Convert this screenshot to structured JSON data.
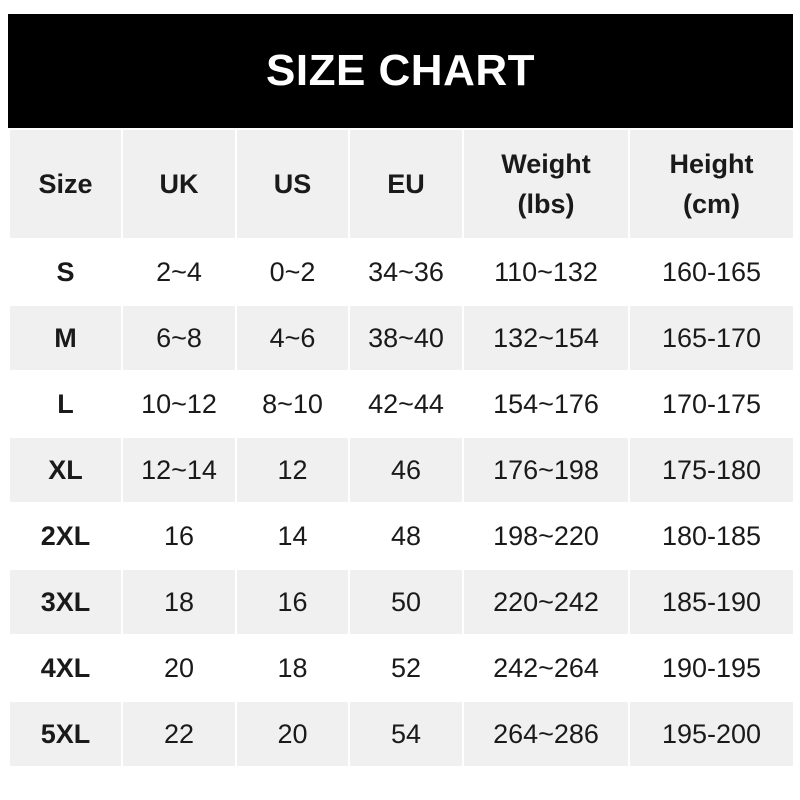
{
  "title": "SIZE CHART",
  "headers": [
    {
      "line1": "Size",
      "line2": ""
    },
    {
      "line1": "UK",
      "line2": ""
    },
    {
      "line1": "US",
      "line2": ""
    },
    {
      "line1": "EU",
      "line2": ""
    },
    {
      "line1": "Weight",
      "line2": "(lbs)"
    },
    {
      "line1": "Height",
      "line2": "(cm)"
    }
  ],
  "rows": [
    [
      "S",
      "2~4",
      "0~2",
      "34~36",
      "110~132",
      "160-165"
    ],
    [
      "M",
      "6~8",
      "4~6",
      "38~40",
      "132~154",
      "165-170"
    ],
    [
      "L",
      "10~12",
      "8~10",
      "42~44",
      "154~176",
      "170-175"
    ],
    [
      "XL",
      "12~14",
      "12",
      "46",
      "176~198",
      "175-180"
    ],
    [
      "2XL",
      "16",
      "14",
      "48",
      "198~220",
      "180-185"
    ],
    [
      "3XL",
      "18",
      "16",
      "50",
      "220~242",
      "185-190"
    ],
    [
      "4XL",
      "20",
      "18",
      "52",
      "242~264",
      "190-195"
    ],
    [
      "5XL",
      "22",
      "20",
      "54",
      "264~286",
      "195-200"
    ]
  ]
}
